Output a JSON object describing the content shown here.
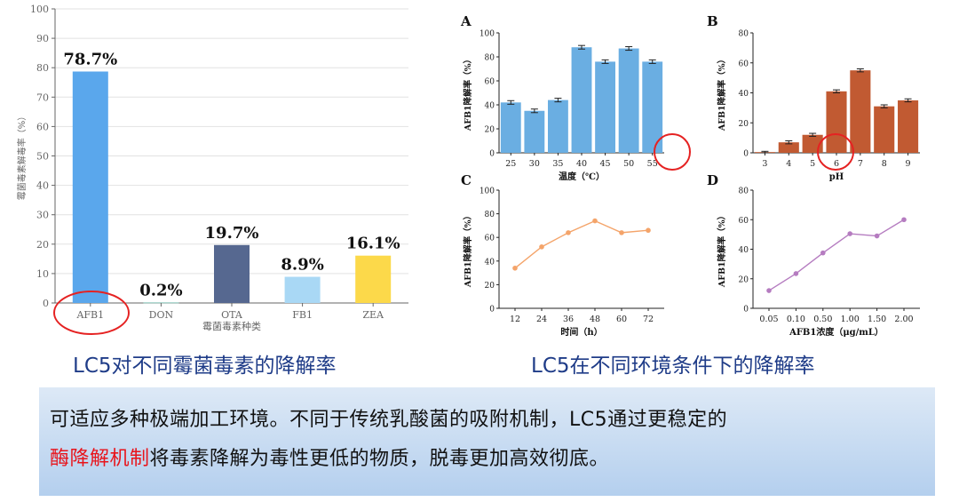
{
  "captions": {
    "left": "LC5对不同霉菌毒素的降解率",
    "right": "LC5在不同环境条件下的降解率"
  },
  "panel": {
    "line1": "可适应多种极端加工环境。不同于传统乳酸菌的吸附机制，LC5通过更稳定的",
    "line2_highlight": "酶降解机制",
    "line2_rest": "将毒素降解为毒性更低的物质，脱毒更加高效彻底。",
    "highlight_color": "#e8141b"
  },
  "chart_data": [
    {
      "id": "main",
      "type": "bar",
      "xlabel": "霉菌毒素种类",
      "ylabel": "霉菌毒素解毒率（%）",
      "ylim": [
        0,
        100
      ],
      "yticks": [
        0,
        10,
        20,
        30,
        40,
        50,
        60,
        70,
        80,
        90,
        100
      ],
      "grid": true,
      "categories": [
        "AFB1",
        "DON",
        "OTA",
        "FB1",
        "ZEA"
      ],
      "values": [
        78.7,
        0.2,
        19.7,
        8.9,
        16.1
      ],
      "labels": [
        "78.7%",
        "0.2%",
        "19.7%",
        "8.9%",
        "16.1%"
      ],
      "colors": [
        "#5aa7ec",
        "#86c5b9",
        "#566890",
        "#a9d8f5",
        "#fcd94a"
      ]
    },
    {
      "id": "A",
      "panel_label": "A",
      "type": "bar",
      "xlabel": "温度（℃）",
      "ylabel": "AFB1降解率（%）",
      "ylim": [
        0,
        100
      ],
      "yticks": [
        0,
        20,
        40,
        60,
        80,
        100
      ],
      "categories": [
        "25",
        "30",
        "35",
        "40",
        "45",
        "50",
        "55"
      ],
      "values": [
        42,
        35,
        44,
        88,
        76,
        87,
        76
      ],
      "errors": [
        1.5,
        1.5,
        1.5,
        1.5,
        1.5,
        1.5,
        1.5
      ],
      "color": "#6aaee2"
    },
    {
      "id": "B",
      "panel_label": "B",
      "type": "bar",
      "xlabel": "pH",
      "ylabel": "AFB1降解率（%）",
      "ylim": [
        0,
        80
      ],
      "yticks": [
        0,
        20,
        40,
        60,
        80
      ],
      "categories": [
        "3",
        "4",
        "5",
        "6",
        "7",
        "8",
        "9"
      ],
      "values": [
        0.5,
        7,
        12,
        41,
        55,
        31,
        35
      ],
      "errors": [
        0.5,
        1,
        1,
        1,
        1,
        1,
        1
      ],
      "color": "#c15a32"
    },
    {
      "id": "C",
      "panel_label": "C",
      "type": "line",
      "xlabel": "时间（h）",
      "ylabel": "AFB1降解率（%）",
      "ylim": [
        0,
        100
      ],
      "yticks": [
        0,
        20,
        40,
        60,
        80,
        100
      ],
      "categories": [
        "12",
        "24",
        "36",
        "48",
        "60",
        "72"
      ],
      "values": [
        34,
        52,
        64,
        74,
        64,
        66
      ],
      "color": "#f4a46a"
    },
    {
      "id": "D",
      "panel_label": "D",
      "type": "line",
      "xlabel": "AFB1浓度（μg/mL）",
      "ylabel": "AFB1降解率（%）",
      "ylim": [
        0,
        80
      ],
      "yticks": [
        0,
        20,
        40,
        60,
        80
      ],
      "categories": [
        "0.05",
        "0.10",
        "0.50",
        "1.00",
        "1.50",
        "2.00"
      ],
      "values": [
        12,
        23.5,
        37.5,
        50.5,
        49,
        60
      ],
      "color": "#b57cc0"
    }
  ]
}
